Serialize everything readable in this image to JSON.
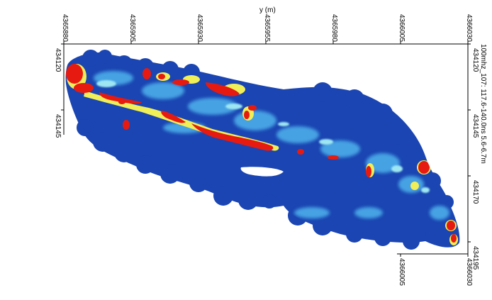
{
  "map": {
    "y_axis_title": "y (m)",
    "top_ticks": [
      "4365880",
      "4365905",
      "4365930",
      "4365955",
      "4365980",
      "4366005",
      "4366030"
    ],
    "left_ticks": [
      "434120",
      "434145"
    ],
    "right_ticks": [
      "434120",
      "434145",
      "434170",
      "434195"
    ],
    "bottom_ticks": [
      "4366005",
      "4366030"
    ],
    "side_caption": "100mhz_107: 117.6-140.0ns 5.6-6.7m",
    "colormap": [
      "#0a2a9a",
      "#1746b8",
      "#2a6fd6",
      "#4fb3ec",
      "#9ee7f2",
      "#f0ef58",
      "#f59a20",
      "#e61a10"
    ]
  }
}
